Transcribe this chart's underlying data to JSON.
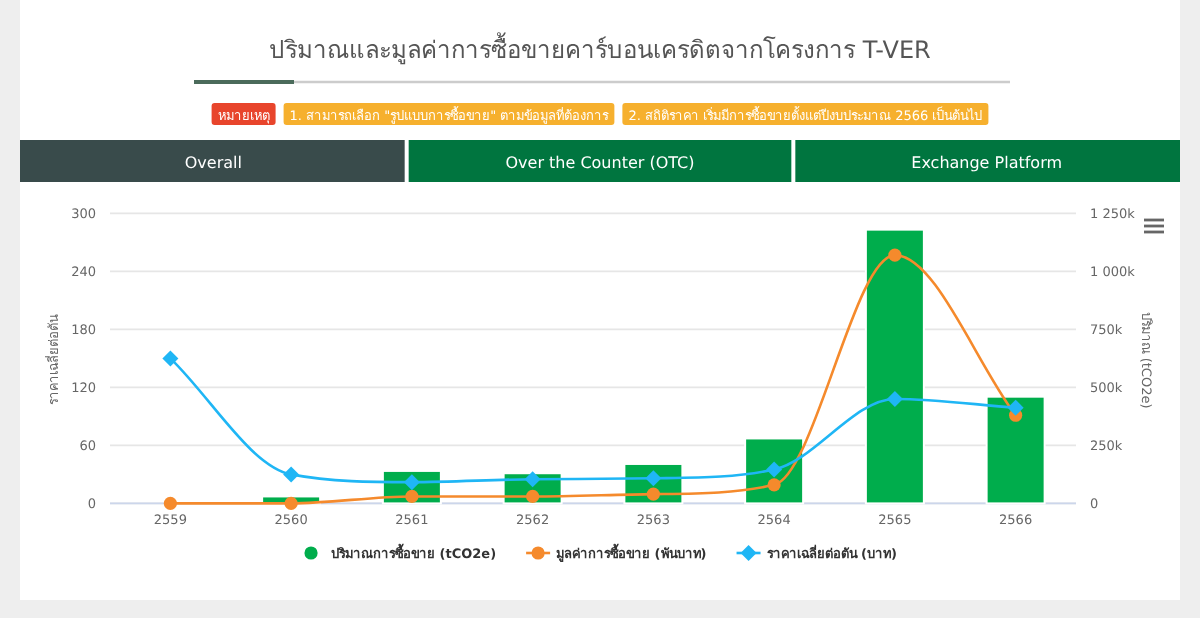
{
  "chart_data": {
    "type": "bar",
    "title": "ปริมาณและมูลค่าการซื้อขายคาร์บอนเครดิตจากโครงการ T-VER",
    "annotations": [
      "หมายเหตุ",
      "1. สามารถเลือก \"รูปแบบการซื้อขาย\" ตามข้อมูลที่ต้องการ",
      "2. สถิติราคา เริ่มมีการซื้อขายตั้งแต่ปีงบประมาณ 2566 เป็นต้นไป",
      "Overall",
      "Over the Counter (OTC)",
      "Exchange Platform"
    ],
    "categories": [
      "2559",
      "2560",
      "2561",
      "2562",
      "2563",
      "2564",
      "2565",
      "2566"
    ],
    "ylabel": "ราคาเฉลี่ยต่อตัน",
    "y2label": "ปริมาณ (tCO2e)",
    "ylim": [
      0,
      300
    ],
    "yticks": [
      0,
      60,
      120,
      180,
      240,
      300
    ],
    "y2lim": [
      0,
      1250000
    ],
    "y2ticks": [
      0,
      {
        "value": 250000,
        "label": "250k"
      },
      {
        "value": 500000,
        "label": "500k"
      },
      {
        "value": 750000,
        "label": "750k"
      },
      {
        "value": 1000000,
        "label": "1 000k"
      },
      {
        "value": 1250000,
        "label": "1 250k"
      }
    ],
    "grid": "y",
    "legend": "bottom",
    "series": [
      {
        "name": "ปริมาณการซื้อขาย (tCO2e)",
        "axis": "y2",
        "color": "#00ad4c",
        "values": [
          0,
          30000,
          140000,
          130000,
          170000,
          280000,
          1180000,
          460000
        ]
      },
      {
        "name": "มูลค่าการซื้อขาย (พันบาท)",
        "type": "line",
        "axis": "y2",
        "marker": "circle",
        "color": "#f58a2c",
        "values": [
          0,
          0,
          30000,
          30000,
          40000,
          80000,
          1070000,
          380000
        ]
      },
      {
        "name": "ราคาเฉลี่ยต่อตัน (บาท)",
        "type": "line",
        "marker": "diamond",
        "color": "#1fb6f5",
        "values": [
          150,
          30,
          22,
          25,
          26,
          35,
          108,
          99
        ]
      }
    ]
  }
}
